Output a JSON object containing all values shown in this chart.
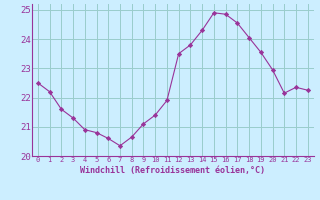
{
  "x": [
    0,
    1,
    2,
    3,
    4,
    5,
    6,
    7,
    8,
    9,
    10,
    11,
    12,
    13,
    14,
    15,
    16,
    17,
    18,
    19,
    20,
    21,
    22,
    23
  ],
  "y": [
    22.5,
    22.2,
    21.6,
    21.3,
    20.9,
    20.8,
    20.6,
    20.35,
    20.65,
    21.1,
    21.4,
    21.9,
    23.5,
    23.8,
    24.3,
    24.9,
    24.85,
    24.55,
    24.05,
    23.55,
    22.95,
    22.15,
    22.35,
    22.25
  ],
  "line_color": "#993399",
  "marker": "D",
  "marker_size": 2.2,
  "bg_color": "#cceeff",
  "grid_color": "#99cccc",
  "xlabel": "Windchill (Refroidissement éolien,°C)",
  "xlabel_color": "#993399",
  "tick_color": "#993399",
  "ylim": [
    20.0,
    25.2
  ],
  "xlim": [
    -0.5,
    23.5
  ],
  "yticks": [
    20,
    21,
    22,
    23,
    24,
    25
  ],
  "xticks": [
    0,
    1,
    2,
    3,
    4,
    5,
    6,
    7,
    8,
    9,
    10,
    11,
    12,
    13,
    14,
    15,
    16,
    17,
    18,
    19,
    20,
    21,
    22,
    23
  ],
  "xtick_labels": [
    "0",
    "1",
    "2",
    "3",
    "4",
    "5",
    "6",
    "7",
    "8",
    "9",
    "10",
    "11",
    "12",
    "13",
    "14",
    "15",
    "16",
    "17",
    "18",
    "19",
    "20",
    "21",
    "22",
    "23"
  ]
}
